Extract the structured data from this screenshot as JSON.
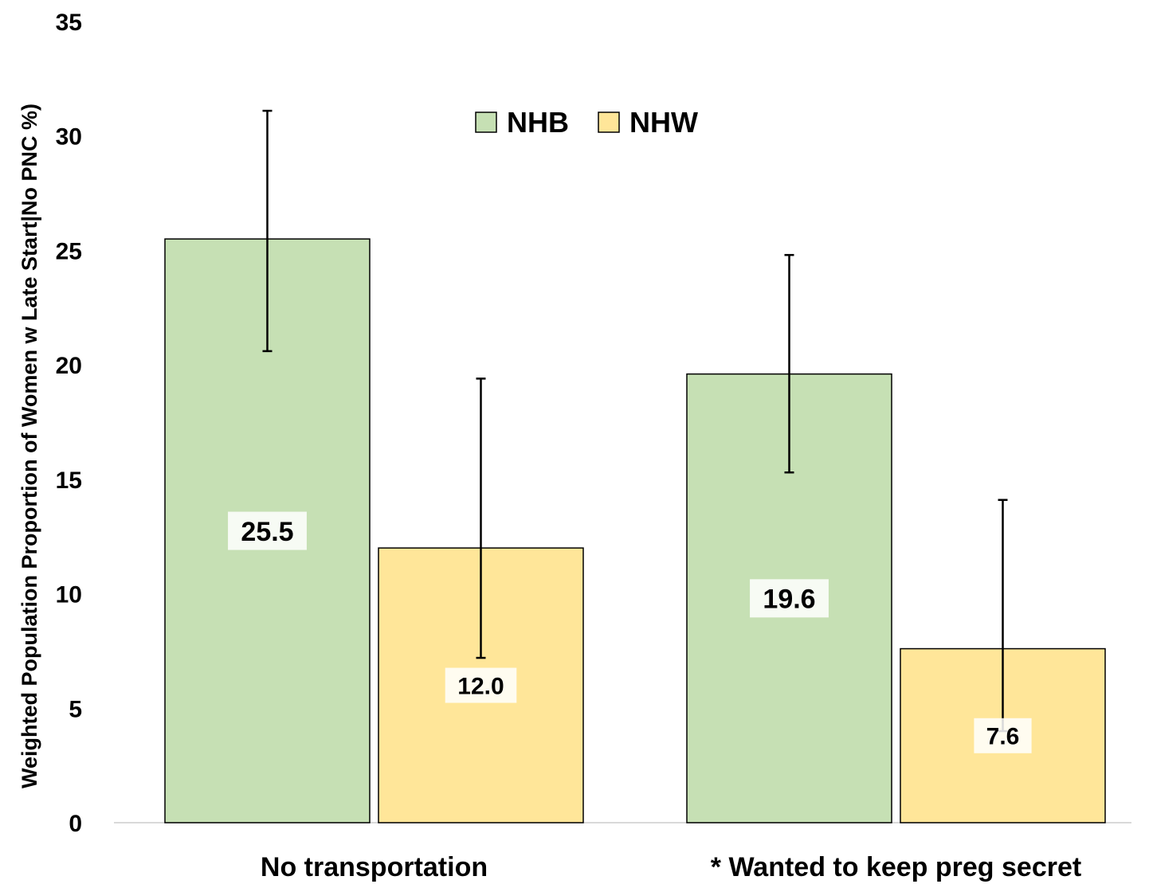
{
  "chart_data": {
    "type": "bar",
    "title": "",
    "xlabel": "",
    "ylabel": "Weighted Population Proportion of Women w Late Start|No PNC %)",
    "ylim": [
      0,
      35
    ],
    "yticks": [
      0,
      5,
      10,
      15,
      20,
      25,
      30,
      35
    ],
    "grid": false,
    "legend_position": "top-center",
    "categories": [
      "No transportation",
      "*  Wanted to keep preg secret"
    ],
    "series": [
      {
        "name": "NHB",
        "color": "#c6e0b4",
        "values": [
          25.5,
          19.6
        ],
        "value_labels": [
          "25.5",
          "19.6"
        ],
        "error_low": [
          20.6,
          15.3
        ],
        "error_high": [
          31.1,
          24.8
        ]
      },
      {
        "name": "NHW",
        "color": "#ffe699",
        "values": [
          12.0,
          7.6
        ],
        "value_labels": [
          "12.0",
          "7.6"
        ],
        "error_low": [
          7.2,
          4.0
        ],
        "error_high": [
          19.4,
          14.1
        ]
      }
    ]
  }
}
